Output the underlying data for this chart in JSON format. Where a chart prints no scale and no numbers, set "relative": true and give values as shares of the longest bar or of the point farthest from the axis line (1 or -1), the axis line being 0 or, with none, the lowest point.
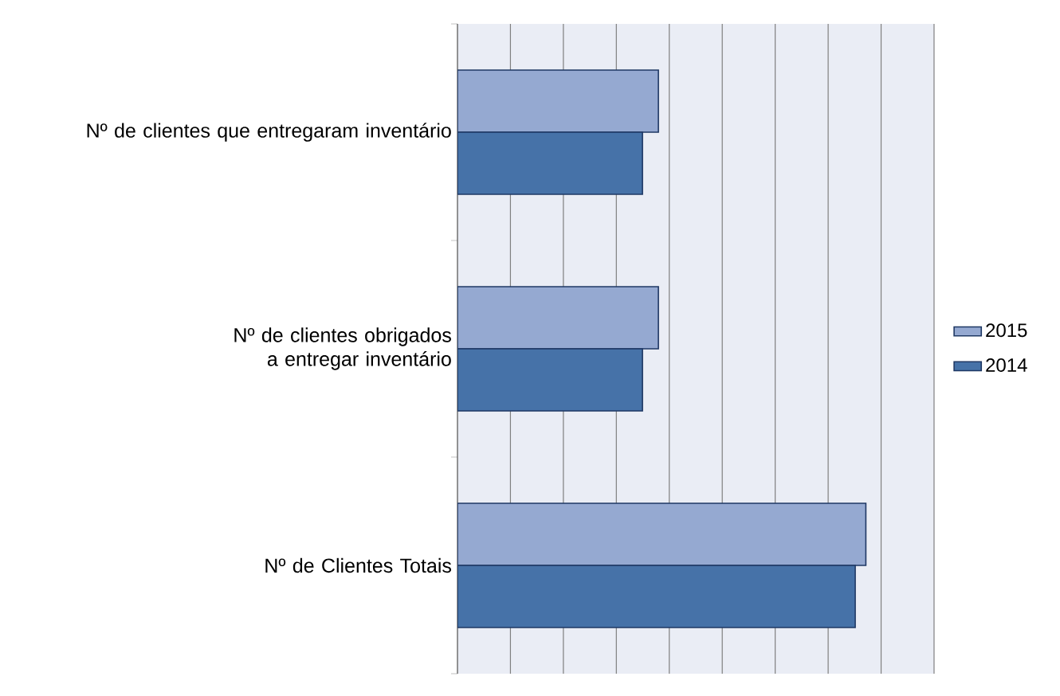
{
  "chart_data": {
    "type": "bar",
    "orientation": "horizontal",
    "relative": true,
    "grid": "x",
    "legend": "right",
    "categories": [
      "Nº de clientes que entregaram inventário",
      "Nº de clientes obrigados a entregar inventário",
      "Nº de Clientes Totais"
    ],
    "series": [
      {
        "name": "2015",
        "color": "#95a9d1",
        "values": [
          0.492,
          0.492,
          1
        ]
      },
      {
        "name": "2014",
        "color": "#4672a8",
        "values": [
          0.453,
          0.453,
          0.974
        ]
      }
    ]
  }
}
